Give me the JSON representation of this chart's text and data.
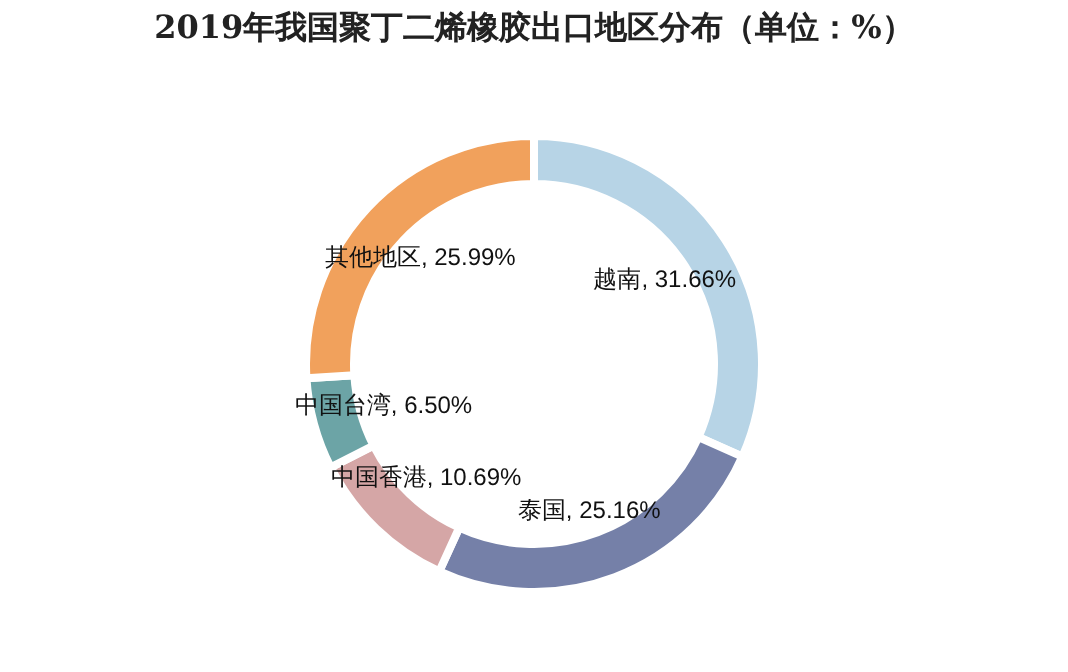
{
  "chart_data": {
    "type": "donut",
    "title": "2019年我国聚丁二烯橡胶出口地区分布（单位：%）",
    "categories": [
      "越南",
      "泰国",
      "中国香港",
      "中国台湾",
      "其他地区"
    ],
    "values": [
      31.66,
      25.16,
      10.69,
      6.5,
      25.99
    ],
    "value_labels": [
      "31.66%",
      "25.16%",
      "10.69%",
      "6.50%",
      "25.99%"
    ],
    "colors": [
      "#b7d4e6",
      "#7580a8",
      "#d5a6a6",
      "#6ca4a6",
      "#f1a15c"
    ],
    "legend": false
  }
}
